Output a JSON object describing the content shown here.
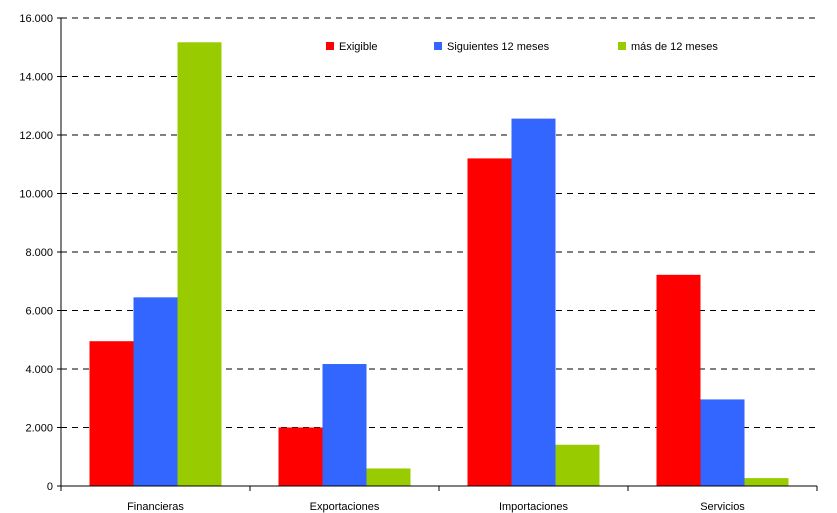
{
  "chart_data": {
    "type": "bar",
    "categories": [
      "Financieras",
      "Exportaciones",
      "Importaciones",
      "Servicios"
    ],
    "series": [
      {
        "name": "Exigible",
        "color": "#ff0000",
        "values": [
          4950,
          2000,
          11200,
          7220
        ]
      },
      {
        "name": "Siguientes 12 meses",
        "color": "#3366ff",
        "values": [
          6450,
          4170,
          12560,
          2960
        ]
      },
      {
        "name": "más de 12 meses",
        "color": "#99cc00",
        "values": [
          15170,
          600,
          1410,
          270
        ]
      }
    ],
    "ylim": [
      0,
      16000
    ],
    "yticks": [
      0,
      2000,
      4000,
      6000,
      8000,
      10000,
      12000,
      14000,
      16000
    ],
    "ytick_labels": [
      "0",
      "2.000",
      "4.000",
      "6.000",
      "8.000",
      "10.000",
      "12.000",
      "14.000",
      "16.000"
    ],
    "grid": true,
    "legend_position": "top"
  }
}
